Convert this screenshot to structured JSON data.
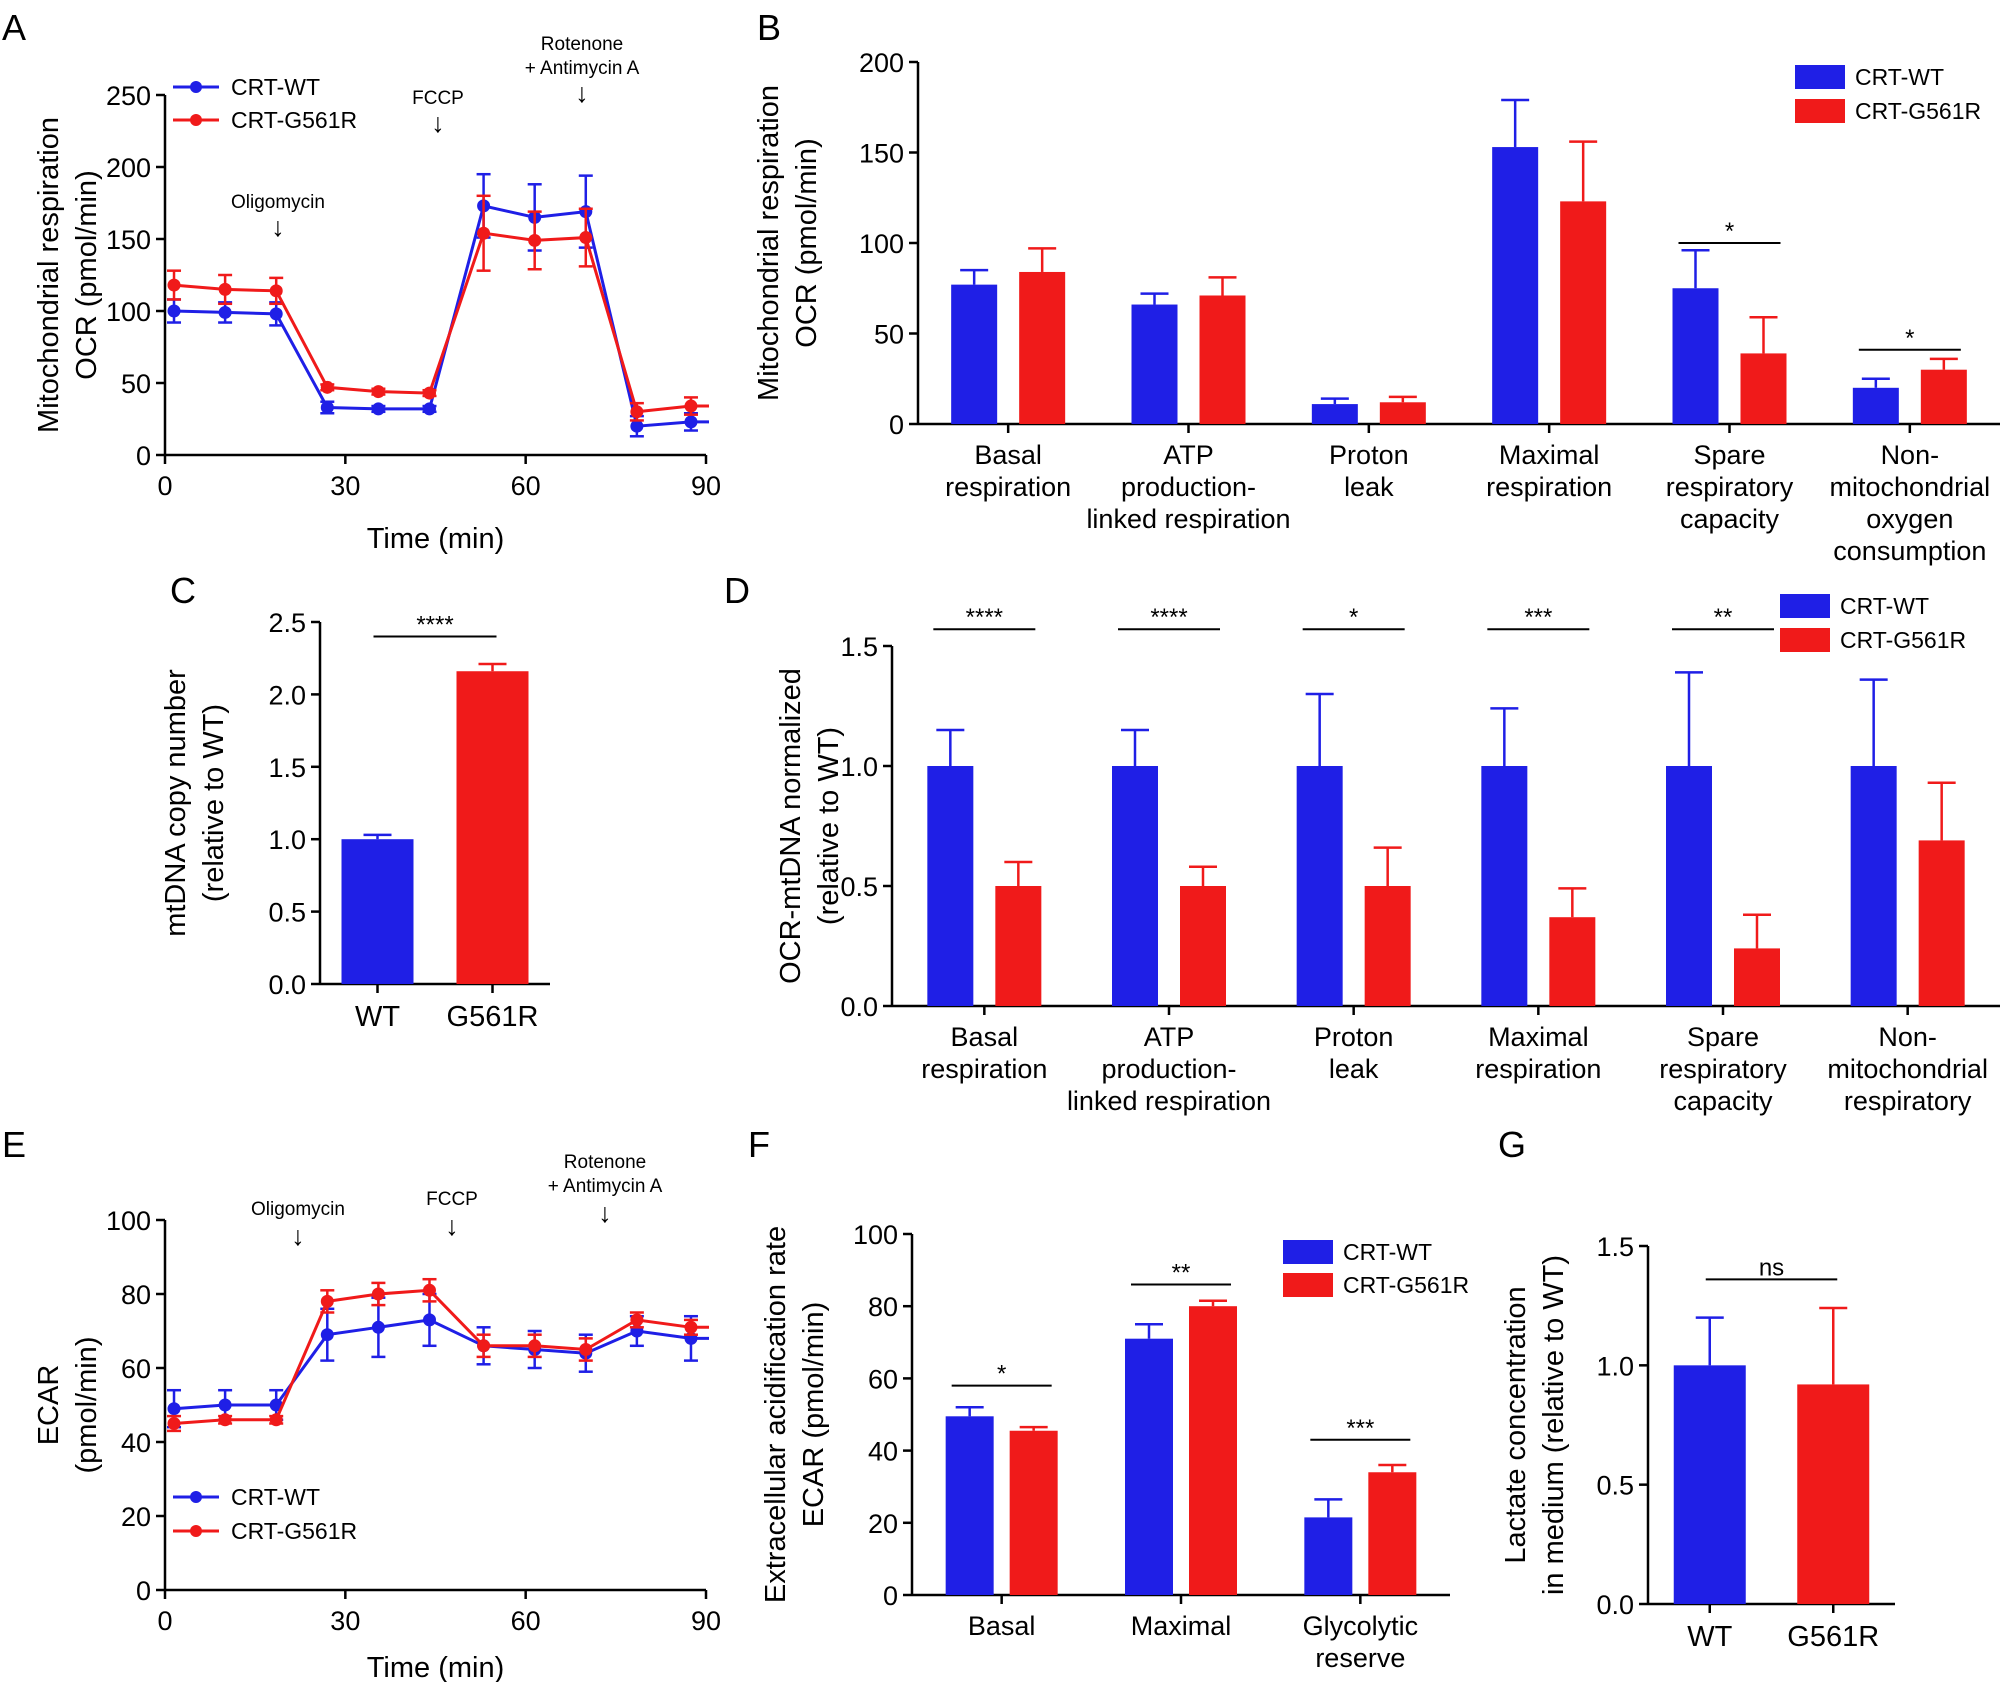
{
  "colors": {
    "wt": "#1f1fe6",
    "mut": "#f01a1a"
  },
  "chart_data": [
    {
      "panel": "A",
      "type": "line",
      "ylabel": [
        "Mitochondrial respiration",
        "OCR (pmol/min)"
      ],
      "xlabel": "Time (min)",
      "xlim": [
        0,
        90
      ],
      "ylim": [
        0,
        250
      ],
      "xticks": [
        "0",
        "30",
        "60",
        "90"
      ],
      "yticks": [
        "0",
        "50",
        "100",
        "150",
        "200",
        "250"
      ],
      "legend": [
        "CRT-WT",
        "CRT-G561R"
      ],
      "annotations": [
        {
          "lines": [
            "Oligomycin"
          ],
          "x": 18
        },
        {
          "lines": [
            "FCCP"
          ],
          "x": 46
        },
        {
          "lines": [
            "Rotenone",
            "+ Antimycin A"
          ],
          "x": 70
        }
      ],
      "x": [
        1.5,
        10,
        18.5,
        27,
        35.5,
        44,
        53,
        61.5,
        70,
        78.5,
        87.5
      ],
      "series": [
        {
          "name": "CRT-WT",
          "values": [
            100,
            99,
            98,
            33,
            32,
            32,
            173,
            165,
            169,
            20,
            23
          ],
          "errors": [
            8,
            7,
            8,
            4,
            2,
            2,
            22,
            23,
            25,
            7,
            6
          ]
        },
        {
          "name": "CRT-G561R",
          "values": [
            118,
            115,
            114,
            47,
            44,
            43,
            154,
            149,
            151,
            30,
            34
          ],
          "errors": [
            10,
            10,
            9,
            2,
            2,
            2,
            26,
            20,
            20,
            6,
            6
          ]
        }
      ]
    },
    {
      "panel": "B",
      "type": "bar",
      "ylabel": [
        "Mitochondrial respiration",
        "OCR (pmol/min)"
      ],
      "ylim": [
        0,
        200
      ],
      "yticks": [
        "0",
        "50",
        "100",
        "150",
        "200"
      ],
      "legend": [
        "CRT-WT",
        "CRT-G561R"
      ],
      "categories": [
        [
          "Basal",
          "respiration"
        ],
        [
          "ATP",
          "production-",
          "linked respiration"
        ],
        [
          "Proton",
          "leak"
        ],
        [
          "Maximal",
          "respiration"
        ],
        [
          "Spare",
          "respiratory",
          "capacity"
        ],
        [
          "Non-",
          "mitochondrial",
          "oxygen",
          "consumption"
        ]
      ],
      "series": [
        {
          "name": "CRT-WT",
          "values": [
            77,
            66,
            11,
            153,
            75,
            20
          ],
          "errors": [
            8,
            6,
            3,
            26,
            21,
            5
          ]
        },
        {
          "name": "CRT-G561R",
          "values": [
            84,
            71,
            12,
            123,
            39,
            30
          ],
          "errors": [
            13,
            10,
            3,
            33,
            20,
            6
          ]
        }
      ],
      "significance": [
        {
          "cat": 4,
          "label": "*",
          "y": 100
        },
        {
          "cat": 5,
          "label": "*",
          "y": 41
        }
      ]
    },
    {
      "panel": "C",
      "type": "bar",
      "ylabel": [
        "mtDNA copy number",
        "(relative to WT)"
      ],
      "ylim": [
        0,
        2.5
      ],
      "yticks": [
        "0.0",
        "0.5",
        "1.0",
        "1.5",
        "2.0",
        "2.5"
      ],
      "categories": [
        "WT",
        "G561R"
      ],
      "values": [
        1.0,
        2.16
      ],
      "errors": [
        0.03,
        0.05
      ],
      "significance": [
        {
          "label": "****",
          "y": 2.4
        }
      ]
    },
    {
      "panel": "D",
      "type": "bar",
      "ylabel": [
        "OCR-mtDNA normalized",
        "(relative to WT)"
      ],
      "ylim": [
        0,
        1.5
      ],
      "yticks": [
        "0.0",
        "0.5",
        "1.0",
        "1.5"
      ],
      "legend": [
        "CRT-WT",
        "CRT-G561R"
      ],
      "categories": [
        [
          "Basal",
          "respiration"
        ],
        [
          "ATP",
          "production-",
          "linked respiration"
        ],
        [
          "Proton",
          "leak"
        ],
        [
          "Maximal",
          "respiration"
        ],
        [
          "Spare",
          "respiratory",
          "capacity"
        ],
        [
          "Non-",
          "mitochondrial",
          "respiratory"
        ]
      ],
      "series": [
        {
          "name": "CRT-WT",
          "values": [
            1.0,
            1.0,
            1.0,
            1.0,
            1.0,
            1.0
          ],
          "errors": [
            0.15,
            0.15,
            0.3,
            0.24,
            0.39,
            0.36
          ]
        },
        {
          "name": "CRT-G561R",
          "values": [
            0.5,
            0.5,
            0.5,
            0.37,
            0.24,
            0.69
          ],
          "errors": [
            0.1,
            0.08,
            0.16,
            0.12,
            0.14,
            0.24
          ]
        }
      ],
      "significance": [
        {
          "cat": 0,
          "label": "****",
          "y": 1.57
        },
        {
          "cat": 1,
          "label": "****",
          "y": 1.57
        },
        {
          "cat": 2,
          "label": "*",
          "y": 1.57
        },
        {
          "cat": 3,
          "label": "***",
          "y": 1.57
        },
        {
          "cat": 4,
          "label": "**",
          "y": 1.57
        }
      ]
    },
    {
      "panel": "E",
      "type": "line",
      "ylabel": [
        "ECAR",
        "(pmol/min)"
      ],
      "xlabel": "Time (min)",
      "xlim": [
        0,
        90
      ],
      "ylim": [
        0,
        100
      ],
      "xticks": [
        "0",
        "30",
        "60",
        "90"
      ],
      "yticks": [
        "0",
        "20",
        "40",
        "60",
        "80",
        "100"
      ],
      "legend": [
        "CRT-WT",
        "CRT-G561R"
      ],
      "annotations": [
        {
          "lines": [
            "Oligomycin"
          ],
          "x": 22
        },
        {
          "lines": [
            "FCCP"
          ],
          "x": 48
        },
        {
          "lines": [
            "Rotenone",
            "+ Antimycin A"
          ],
          "x": 73
        }
      ],
      "x": [
        1.5,
        10,
        18.5,
        27,
        35.5,
        44,
        53,
        61.5,
        70,
        78.5,
        87.5
      ],
      "series": [
        {
          "name": "CRT-WT",
          "values": [
            49,
            50,
            50,
            69,
            71,
            73,
            66,
            65,
            64,
            70,
            68
          ],
          "errors": [
            5,
            4,
            4,
            7,
            8,
            7,
            5,
            5,
            5,
            4,
            6
          ]
        },
        {
          "name": "CRT-G561R",
          "values": [
            45,
            46,
            46,
            78,
            80,
            81,
            66,
            66,
            65,
            73,
            71
          ],
          "errors": [
            2,
            1,
            1,
            3,
            3,
            3,
            3,
            3,
            3,
            2,
            2
          ]
        }
      ]
    },
    {
      "panel": "F",
      "type": "bar",
      "ylabel": [
        "Extracellular acidification rate",
        "ECAR (pmol/min)"
      ],
      "ylim": [
        0,
        100
      ],
      "yticks": [
        "0",
        "20",
        "40",
        "60",
        "80",
        "100"
      ],
      "legend": [
        "CRT-WT",
        "CRT-G561R"
      ],
      "categories": [
        [
          "Basal"
        ],
        [
          "Maximal"
        ],
        [
          "Glycolytic",
          "reserve"
        ]
      ],
      "series": [
        {
          "name": "CRT-WT",
          "values": [
            49.5,
            71,
            21.5
          ],
          "errors": [
            2.5,
            4,
            5
          ]
        },
        {
          "name": "CRT-G561R",
          "values": [
            45.5,
            80,
            34
          ],
          "errors": [
            1,
            1.5,
            2
          ]
        }
      ],
      "significance": [
        {
          "cat": 0,
          "label": "*",
          "y": 58
        },
        {
          "cat": 1,
          "label": "**",
          "y": 86
        },
        {
          "cat": 2,
          "label": "***",
          "y": 43
        }
      ]
    },
    {
      "panel": "G",
      "type": "bar",
      "ylabel": [
        "Lactate concentration",
        "in medium (relative to WT)"
      ],
      "ylim": [
        0,
        1.5
      ],
      "yticks": [
        "0.0",
        "0.5",
        "1.0",
        "1.5"
      ],
      "categories": [
        "WT",
        "G561R"
      ],
      "values": [
        1.0,
        0.92
      ],
      "errors": [
        0.2,
        0.32
      ],
      "significance": [
        {
          "label": "ns",
          "y": 1.36
        }
      ]
    }
  ]
}
